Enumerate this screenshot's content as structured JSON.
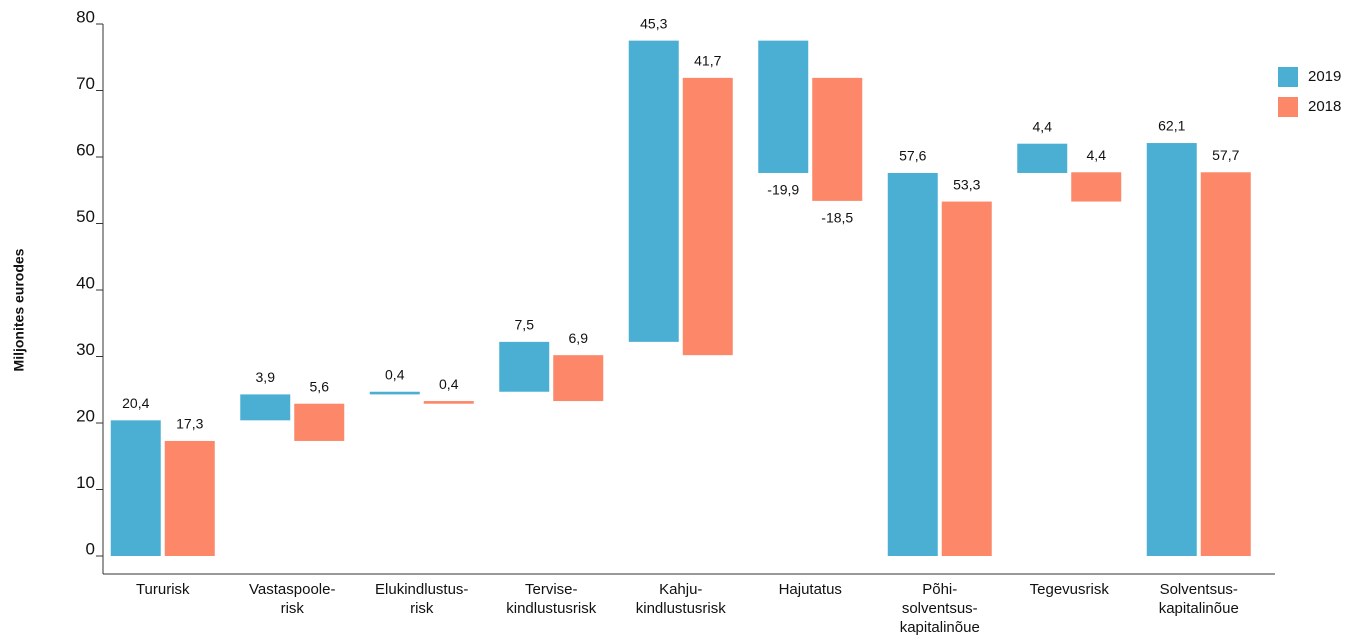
{
  "chart_data": {
    "type": "waterfall",
    "y_label": "Miljonites eurodes",
    "categories": [
      "Tururisk",
      "Vastaspoole-\nrisk",
      "Elukindlustus-\nrisk",
      "Tervise-\nkindlustusrisk",
      "Kahju-\nkindlustusrisk",
      "Hajutatus",
      "Põhi-\nsolventsus-\nkapitalinõue",
      "Tegevusrisk",
      "Solventsus-\nkapitalinõue"
    ],
    "totals": [
      false,
      false,
      false,
      false,
      false,
      false,
      true,
      false,
      true
    ],
    "series": [
      {
        "name": "2019",
        "color": "#4bafd3",
        "values": [
          20.4,
          3.9,
          0.4,
          7.5,
          45.3,
          -19.9,
          57.6,
          4.4,
          62.1
        ],
        "value_labels": [
          "20,4",
          "3,9",
          "0,4",
          "7,5",
          "45,3",
          "-19,9",
          "57,6",
          "4,4",
          "62,1"
        ]
      },
      {
        "name": "2018",
        "color": "#fc8769",
        "values": [
          17.3,
          5.6,
          0.4,
          6.9,
          41.7,
          -18.5,
          53.3,
          4.4,
          57.7
        ],
        "value_labels": [
          "17,3",
          "5,6",
          "0,4",
          "6,9",
          "41,7",
          "-18,5",
          "53,3",
          "4,4",
          "57,7"
        ]
      }
    ],
    "ylim": [
      0,
      80
    ],
    "yticks": [
      0,
      10,
      20,
      30,
      40,
      50,
      60,
      70,
      80
    ],
    "legend": "right"
  }
}
